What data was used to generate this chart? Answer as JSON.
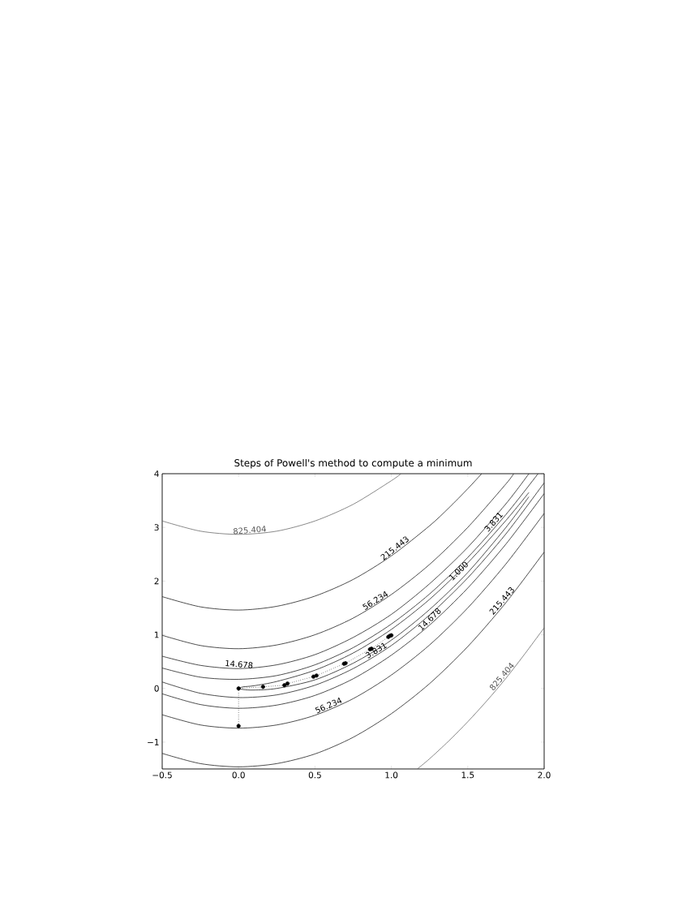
{
  "chart_data": {
    "type": "line",
    "title": "Steps of Powell's method to compute a  minimum",
    "xlim": [
      -0.5,
      2.0
    ],
    "ylim": [
      -1.5,
      4
    ],
    "xticks": [
      {
        "value": -0.5,
        "label": "−0.5"
      },
      {
        "value": 0,
        "label": "0.0"
      },
      {
        "value": 0.5,
        "label": "0.5"
      },
      {
        "value": 1,
        "label": "1.0"
      },
      {
        "value": 1.5,
        "label": "1.5"
      },
      {
        "value": 2,
        "label": "2.0"
      }
    ],
    "yticks": [
      {
        "value": -1,
        "label": "−1"
      },
      0,
      1,
      2,
      3,
      4
    ],
    "series": [
      {
        "color": "#555555",
        "line_style": "solid",
        "x": [
          -0.5,
          -0.25,
          0,
          0.25,
          0.5,
          0.75,
          1,
          1.063
        ],
        "values": [
          3.12,
          2.93,
          2.87,
          2.93,
          3.12,
          3.43,
          3.87,
          4.0
        ]
      },
      {
        "color": "#555555",
        "line_style": "solid",
        "x": [
          1.17,
          1.25,
          1.375,
          1.5,
          1.625,
          1.75,
          1.875,
          2
        ],
        "values": [
          -1.5,
          -1.31,
          -0.98,
          -0.62,
          -0.23,
          0.19,
          0.65,
          1.13
        ]
      },
      {
        "color": "#000000",
        "line_style": "solid",
        "x": [
          -0.5,
          -0.25,
          0,
          0.25,
          0.5,
          0.75,
          1,
          1.25,
          1.375,
          1.5,
          1.591
        ],
        "values": [
          1.71,
          1.52,
          1.46,
          1.53,
          1.72,
          2.03,
          2.47,
          3.03,
          3.36,
          3.72,
          4.0
        ]
      },
      {
        "color": "#000000",
        "line_style": "solid",
        "x": [
          -0.5,
          -0.25,
          0,
          0.25,
          0.5,
          0.75,
          1,
          1.25,
          1.5,
          1.75,
          2
        ],
        "values": [
          -1.21,
          -1.4,
          -1.46,
          -1.4,
          -1.22,
          -0.91,
          -0.47,
          0.09,
          0.78,
          1.6,
          2.54
        ]
      },
      {
        "color": "#000000",
        "line_style": "solid",
        "x": [
          -0.5,
          -0.25,
          0,
          0.25,
          0.5,
          0.75,
          1,
          1.25,
          1.5,
          1.75,
          1.8
        ],
        "values": [
          0.99,
          0.8,
          0.74,
          0.81,
          1.0,
          1.31,
          1.75,
          2.31,
          3.0,
          3.81,
          4.0
        ]
      },
      {
        "color": "#000000",
        "line_style": "solid",
        "x": [
          -0.5,
          -0.25,
          0,
          0.25,
          0.5,
          0.75,
          1,
          1.25,
          1.5,
          1.75,
          2
        ],
        "values": [
          -0.49,
          -0.68,
          -0.74,
          -0.68,
          -0.5,
          -0.19,
          0.25,
          0.81,
          1.5,
          2.32,
          3.26
        ]
      },
      {
        "color": "#000000",
        "line_style": "solid",
        "x": [
          -0.5,
          -0.25,
          0,
          0.25,
          0.5,
          0.75,
          1,
          1.25,
          1.5,
          1.75,
          1.9
        ],
        "values": [
          0.6,
          0.43,
          0.37,
          0.44,
          0.63,
          0.95,
          1.38,
          1.95,
          2.63,
          3.44,
          4.0
        ]
      },
      {
        "color": "#000000",
        "line_style": "solid",
        "x": [
          -0.5,
          -0.25,
          0,
          0.25,
          0.5,
          0.75,
          1,
          1.25,
          1.5,
          1.75,
          2
        ],
        "values": [
          -0.1,
          -0.3,
          -0.37,
          -0.31,
          -0.13,
          0.18,
          0.62,
          1.18,
          1.87,
          2.69,
          3.63
        ]
      },
      {
        "color": "#000000",
        "line_style": "solid",
        "x": [
          -0.5,
          -0.25,
          0,
          0.25,
          0.5,
          0.75,
          1,
          1.25,
          1.5,
          1.75,
          1.96
        ],
        "values": [
          0.38,
          0.21,
          0.17,
          0.24,
          0.44,
          0.76,
          1.2,
          1.76,
          2.44,
          3.24,
          4.0
        ]
      },
      {
        "color": "#000000",
        "line_style": "solid",
        "x": [
          -0.5,
          -0.25,
          0,
          0.25,
          0.5,
          0.75,
          1,
          1.25,
          1.5,
          1.75,
          2
        ],
        "values": [
          0.12,
          -0.09,
          -0.17,
          -0.12,
          0.06,
          0.37,
          0.8,
          1.37,
          2.06,
          2.88,
          3.83
        ]
      },
      {
        "color": "#000000",
        "line_style": "solid",
        "x": [
          0,
          0.03,
          0.1,
          0.25,
          0.5,
          0.75,
          1,
          1.25,
          1.5,
          1.75,
          1.9
        ],
        "values": [
          0,
          0.03,
          0.05,
          0.13,
          0.34,
          0.66,
          1.1,
          1.66,
          2.34,
          3.13,
          3.65
        ]
      },
      {
        "color": "#000000",
        "line_style": "solid",
        "x": [
          0,
          0.03,
          0.1,
          0.25,
          0.5,
          0.75,
          1,
          1.25,
          1.5,
          1.75,
          1.9
        ],
        "values": [
          0,
          -0.02,
          -0.03,
          0.0,
          0.16,
          0.47,
          0.9,
          1.47,
          2.16,
          3.0,
          3.57
        ]
      },
      {
        "color": "#000000",
        "line_style": "dotted",
        "marker": "circle",
        "x": [
          0,
          0,
          0.16,
          0.3,
          0.32,
          0.49,
          0.51,
          0.69,
          0.7,
          0.86,
          0.87,
          0.98,
          0.99,
          1.0
        ],
        "values": [
          -0.7,
          0,
          0.03,
          0.06,
          0.09,
          0.22,
          0.24,
          0.46,
          0.47,
          0.73,
          0.74,
          0.96,
          0.98,
          0.99
        ]
      }
    ],
    "annotations": [
      {
        "text": "825.404",
        "x": 0.075,
        "y": 2.87
      },
      {
        "text": "825.404",
        "x": 1.745,
        "y": 0.17
      },
      {
        "text": "215.443",
        "x": 1.04,
        "y": 2.55
      },
      {
        "text": "215.443",
        "x": 1.745,
        "y": 1.58
      },
      {
        "text": "56.234",
        "x": 0.91,
        "y": 1.57
      },
      {
        "text": "56.234",
        "x": 0.6,
        "y": -0.39
      },
      {
        "text": "14.678",
        "x": 0,
        "y": 0.37
      },
      {
        "text": "14.678",
        "x": 1.27,
        "y": 1.23
      },
      {
        "text": "3.831",
        "x": 1.69,
        "y": 3.05
      },
      {
        "text": "3.831",
        "x": 0.915,
        "y": 0.64
      },
      {
        "text": "1.000",
        "x": 1.46,
        "y": 2.13
      }
    ]
  }
}
